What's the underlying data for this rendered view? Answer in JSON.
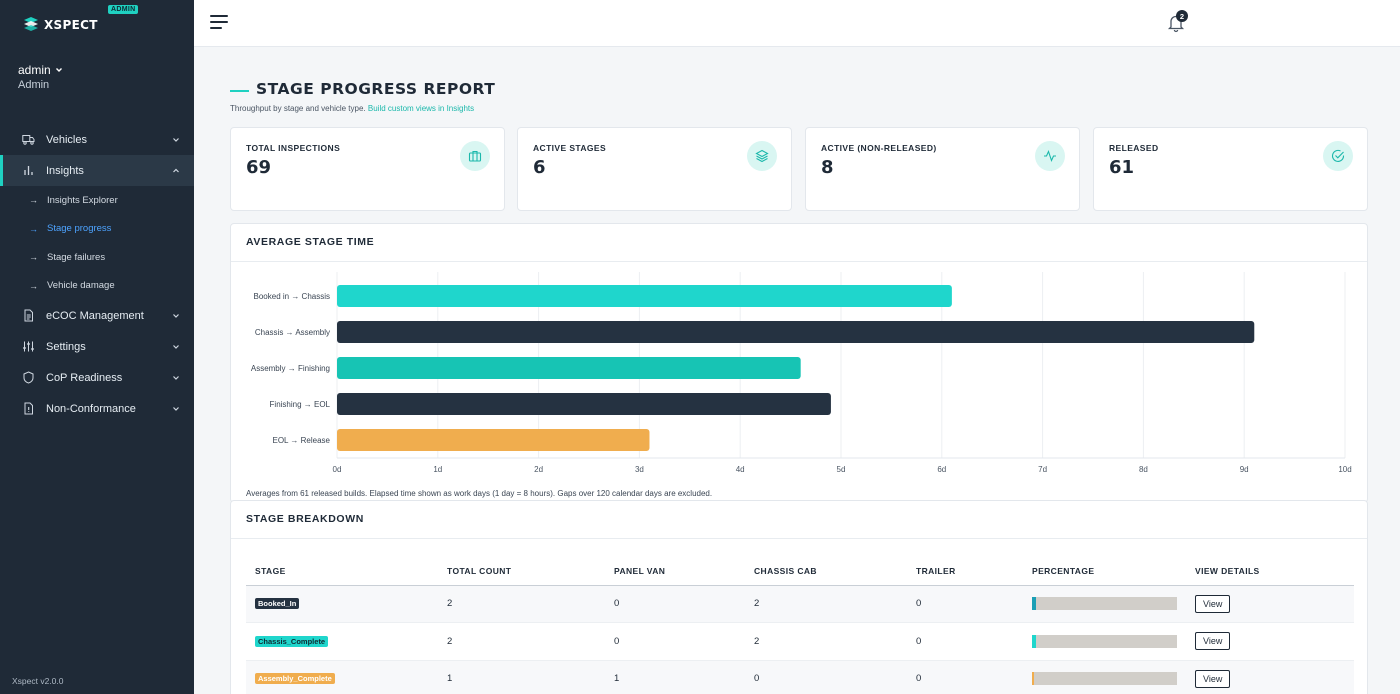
{
  "app": {
    "logo_text": "XSPECT",
    "badge": "ADMIN",
    "version": "Xspect v2.0.0",
    "accent_color": "#1fd1c1"
  },
  "user": {
    "name": "admin",
    "role": "Admin"
  },
  "sidebar": {
    "items": [
      {
        "label": "Vehicles",
        "icon": "truck-icon",
        "expanded": false
      },
      {
        "label": "Insights",
        "icon": "bar-chart-icon",
        "expanded": true,
        "active": true,
        "children": [
          {
            "label": "Insights Explorer",
            "active": false
          },
          {
            "label": "Stage progress",
            "active": true
          },
          {
            "label": "Stage failures",
            "active": false
          },
          {
            "label": "Vehicle damage",
            "active": false
          }
        ]
      },
      {
        "label": "eCOC Management",
        "icon": "document-icon",
        "expanded": false
      },
      {
        "label": "Settings",
        "icon": "sliders-icon",
        "expanded": false
      },
      {
        "label": "CoP Readiness",
        "icon": "shield-icon",
        "expanded": false
      },
      {
        "label": "Non-Conformance",
        "icon": "file-alert-icon",
        "expanded": false
      }
    ]
  },
  "topbar": {
    "notifications_count": "2"
  },
  "page": {
    "title": "STAGE PROGRESS REPORT",
    "subtitle": "Throughput by stage and vehicle type.",
    "subtitle_link": "Build custom views in Insights"
  },
  "stats": [
    {
      "label": "TOTAL INSPECTIONS",
      "value": "69",
      "icon": "briefcase-icon"
    },
    {
      "label": "ACTIVE STAGES",
      "value": "6",
      "icon": "layers-icon"
    },
    {
      "label": "ACTIVE (NON-RELEASED)",
      "value": "8",
      "icon": "activity-icon"
    },
    {
      "label": "RELEASED",
      "value": "61",
      "icon": "check-circle-icon"
    }
  ],
  "chart": {
    "section_title": "AVERAGE STAGE TIME",
    "note": "Averages from 61 released builds. Elapsed time shown as work days (1 day = 8 hours). Gaps over 120 calendar days are excluded."
  },
  "chart_data": {
    "type": "bar",
    "orientation": "horizontal",
    "categories": [
      "Booked in → Chassis",
      "Chassis → Assembly",
      "Assembly → Finishing",
      "Finishing → EOL",
      "EOL → Release"
    ],
    "values": [
      6.1,
      9.1,
      4.6,
      4.9,
      3.1
    ],
    "colors": [
      "#1fd6cc",
      "#253241",
      "#17c4b4",
      "#253241",
      "#f0ad4e"
    ],
    "xlim": [
      0,
      10
    ],
    "ticks": [
      "0d",
      "1d",
      "2d",
      "3d",
      "4d",
      "5d",
      "6d",
      "7d",
      "8d",
      "9d",
      "10d"
    ],
    "grid": true,
    "unit": "work days"
  },
  "table": {
    "section_title": "STAGE BREAKDOWN",
    "columns": [
      "STAGE",
      "TOTAL COUNT",
      "PANEL VAN",
      "CHASSIS CAB",
      "TRAILER",
      "PERCENTAGE",
      "VIEW DETAILS"
    ],
    "rows": [
      {
        "stage": "Booked_In",
        "badge_bg": "#253241",
        "badge_fg": "#ffffff",
        "total": "2",
        "panel_van": "0",
        "chassis_cab": "2",
        "trailer": "0",
        "percentage": 0.029,
        "bar_color": "#1a9fb5",
        "action": "View"
      },
      {
        "stage": "Chassis_Complete",
        "badge_bg": "#1fd6cc",
        "badge_fg": "#0e2a33",
        "total": "2",
        "panel_van": "0",
        "chassis_cab": "2",
        "trailer": "0",
        "percentage": 0.029,
        "bar_color": "#1fd6cc",
        "action": "View"
      },
      {
        "stage": "Assembly_Complete",
        "badge_bg": "#f0ad4e",
        "badge_fg": "#ffffff",
        "total": "1",
        "panel_van": "1",
        "chassis_cab": "0",
        "trailer": "0",
        "percentage": 0.014,
        "bar_color": "#f0ad4e",
        "action": "View"
      }
    ]
  }
}
